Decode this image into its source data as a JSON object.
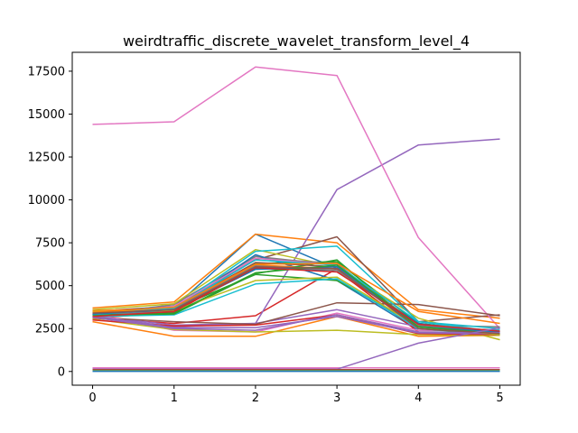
{
  "chart_data": {
    "type": "line",
    "title": "weirdtraffic_discrete_wavelet_transform_level_4",
    "xlabel": "",
    "ylabel": "",
    "x": [
      0,
      1,
      2,
      3,
      4,
      5
    ],
    "xlim": [
      -0.25,
      5.25
    ],
    "ylim": [
      -800,
      18600
    ],
    "xticks": [
      "0",
      "1",
      "2",
      "3",
      "4",
      "5"
    ],
    "yticks": [
      "0",
      "2500",
      "5000",
      "7500",
      "10000",
      "12500",
      "15000",
      "17500"
    ],
    "grid": false,
    "legend": "none",
    "series": [
      {
        "color": "#1f77b4",
        "values": [
          3300,
          3750,
          8000,
          6000,
          2600,
          2400
        ]
      },
      {
        "color": "#ff7f0e",
        "values": [
          3700,
          4050,
          8000,
          7500,
          3600,
          3100
        ]
      },
      {
        "color": "#2ca02c",
        "values": [
          3400,
          3600,
          6300,
          6400,
          2800,
          2300
        ]
      },
      {
        "color": "#d62728",
        "values": [
          3100,
          2800,
          3250,
          6000,
          2600,
          2400
        ]
      },
      {
        "color": "#9467bd",
        "values": [
          3200,
          2600,
          2800,
          10600,
          13200,
          13550
        ]
      },
      {
        "color": "#8c564b",
        "values": [
          3500,
          3800,
          6500,
          7850,
          2900,
          3300
        ]
      },
      {
        "color": "#e377c2",
        "values": [
          14400,
          14550,
          17750,
          17250,
          7800,
          2500
        ]
      },
      {
        "color": "#7f7f7f",
        "values": [
          3300,
          3900,
          6700,
          6200,
          2700,
          2600
        ]
      },
      {
        "color": "#bcbd22",
        "values": [
          3600,
          3950,
          7100,
          6100,
          3100,
          1850
        ]
      },
      {
        "color": "#17becf",
        "values": [
          3300,
          3700,
          7000,
          7300,
          2900,
          2300
        ]
      },
      {
        "color": "#1f77b4",
        "values": [
          3200,
          3600,
          6800,
          5300,
          2400,
          2350
        ]
      },
      {
        "color": "#ff7f0e",
        "values": [
          2900,
          2050,
          2050,
          3200,
          2050,
          2100
        ]
      },
      {
        "color": "#2ca02c",
        "values": [
          3350,
          3650,
          5650,
          5300,
          2700,
          2250
        ]
      },
      {
        "color": "#d62728",
        "values": [
          3100,
          3450,
          6100,
          5900,
          2300,
          2250
        ]
      },
      {
        "color": "#9467bd",
        "values": [
          3250,
          2700,
          2800,
          3600,
          2600,
          2350
        ]
      },
      {
        "color": "#8c564b",
        "values": [
          3150,
          2900,
          2750,
          4000,
          3900,
          3250
        ]
      },
      {
        "color": "#e377c2",
        "values": [
          3350,
          2400,
          2300,
          3400,
          2400,
          2400
        ]
      },
      {
        "color": "#7f7f7f",
        "values": [
          3300,
          3500,
          6600,
          6300,
          2500,
          2200
        ]
      },
      {
        "color": "#bcbd22",
        "values": [
          3050,
          2450,
          2300,
          2400,
          2150,
          2100
        ]
      },
      {
        "color": "#17becf",
        "values": [
          3200,
          3300,
          5100,
          5400,
          2500,
          2400
        ]
      },
      {
        "color": "#1f77b4",
        "values": [
          3400,
          3800,
          6000,
          5900,
          2800,
          2200
        ]
      },
      {
        "color": "#ff7f0e",
        "values": [
          3550,
          3650,
          6200,
          6000,
          2700,
          2300
        ]
      },
      {
        "color": "#2ca02c",
        "values": [
          3300,
          3350,
          5700,
          6500,
          2500,
          2150
        ]
      },
      {
        "color": "#d62728",
        "values": [
          3000,
          2650,
          2700,
          3300,
          2200,
          2150
        ]
      },
      {
        "color": "#9467bd",
        "values": [
          3250,
          2550,
          2550,
          3200,
          2250,
          2200
        ]
      },
      {
        "color": "#8c564b",
        "values": [
          3450,
          3700,
          6350,
          6100,
          2700,
          2150
        ]
      },
      {
        "color": "#e377c2",
        "values": [
          3350,
          3800,
          6600,
          6200,
          2600,
          2250
        ]
      },
      {
        "color": "#7f7f7f",
        "values": [
          3400,
          3650,
          6150,
          5900,
          2700,
          2300
        ]
      },
      {
        "color": "#bcbd22",
        "values": [
          3500,
          3550,
          5300,
          5500,
          2600,
          2150
        ]
      },
      {
        "color": "#17becf",
        "values": [
          3300,
          3700,
          6500,
          6200,
          2900,
          2500
        ]
      },
      {
        "color": "#1f77b4",
        "values": [
          3350,
          3600,
          5950,
          6100,
          2600,
          2300
        ]
      },
      {
        "color": "#ff7f0e",
        "values": [
          3450,
          3750,
          6250,
          6300,
          3500,
          2800
        ]
      },
      {
        "color": "#2ca02c",
        "values": [
          3250,
          3400,
          5750,
          6200,
          2600,
          2200
        ]
      },
      {
        "color": "#d62728",
        "values": [
          3200,
          3500,
          6050,
          5800,
          2750,
          2350
        ]
      },
      {
        "color": "#9467bd",
        "values": [
          3150,
          2500,
          2400,
          3300,
          2300,
          2250
        ]
      },
      {
        "color": "#8c564b",
        "values": [
          3400,
          3600,
          6100,
          6000,
          2500,
          2200
        ]
      },
      {
        "color": "#e377c2",
        "values": [
          210,
          210,
          210,
          210,
          210,
          210
        ]
      },
      {
        "color": "#9467bd",
        "values": [
          130,
          130,
          130,
          130,
          1650,
          2550
        ]
      },
      {
        "color": "#8c564b",
        "values": [
          110,
          110,
          110,
          110,
          110,
          110
        ]
      },
      {
        "color": "#d62728",
        "values": [
          90,
          90,
          90,
          90,
          90,
          90
        ]
      },
      {
        "color": "#2ca02c",
        "values": [
          60,
          60,
          60,
          60,
          60,
          60
        ]
      },
      {
        "color": "#ff7f0e",
        "values": [
          40,
          40,
          40,
          40,
          40,
          40
        ]
      },
      {
        "color": "#17becf",
        "values": [
          20,
          20,
          20,
          20,
          20,
          20
        ]
      },
      {
        "color": "#1f77b4",
        "values": [
          10,
          10,
          10,
          10,
          10,
          10
        ]
      }
    ]
  }
}
